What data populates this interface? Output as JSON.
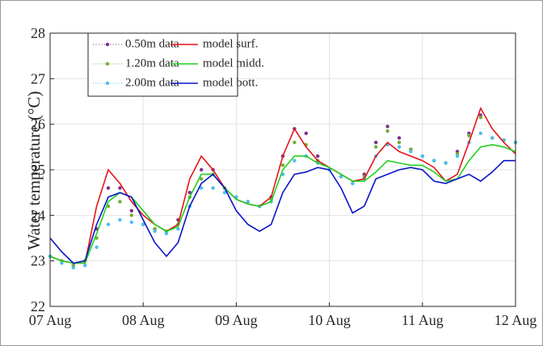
{
  "chart_data": {
    "type": "line",
    "ylabel": "Water temperature (°C)",
    "x": [
      0,
      0.125,
      0.25,
      0.375,
      0.5,
      0.625,
      0.75,
      0.875,
      1,
      1.125,
      1.25,
      1.375,
      1.5,
      1.625,
      1.75,
      1.875,
      2,
      2.125,
      2.25,
      2.375,
      2.5,
      2.625,
      2.75,
      2.875,
      3,
      3.125,
      3.25,
      3.375,
      3.5,
      3.625,
      3.75,
      3.875,
      4,
      4.125,
      4.25,
      4.375,
      4.5,
      4.625,
      4.75,
      4.875,
      5
    ],
    "xlim": [
      0,
      5
    ],
    "xticks": [
      {
        "value": 0,
        "label": "07 Aug"
      },
      {
        "value": 1,
        "label": "08 Aug"
      },
      {
        "value": 2,
        "label": "09 Aug"
      },
      {
        "value": 3,
        "label": "10 Aug"
      },
      {
        "value": 4,
        "label": "11 Aug"
      },
      {
        "value": 5,
        "label": "12 Aug"
      }
    ],
    "ylim": [
      22,
      28
    ],
    "yticks": [
      22,
      23,
      24,
      25,
      26,
      27,
      28
    ],
    "grid": true,
    "legend": "upper left",
    "series": [
      {
        "name": "0.50m data",
        "color": "#7e2f8e",
        "marker": "dot",
        "values": [
          23.1,
          23.0,
          22.9,
          23.0,
          23.7,
          24.6,
          24.6,
          24.1,
          23.8,
          23.7,
          23.65,
          23.9,
          24.5,
          25.0,
          25.0,
          24.6,
          24.4,
          24.3,
          24.2,
          24.4,
          25.3,
          25.9,
          25.8,
          25.3,
          25.0,
          24.85,
          24.7,
          24.9,
          25.6,
          25.95,
          25.7,
          25.45,
          25.3,
          25.2,
          25.15,
          25.4,
          25.8,
          26.2,
          25.7,
          25.65,
          25.6
        ]
      },
      {
        "name": "model surf.",
        "color": "#e3151a",
        "marker": "line",
        "values": [
          23.1,
          23.0,
          22.95,
          22.95,
          24.2,
          25.0,
          24.7,
          24.3,
          24.0,
          23.8,
          23.65,
          23.8,
          24.8,
          25.3,
          25.0,
          24.6,
          24.35,
          24.25,
          24.2,
          24.4,
          25.3,
          25.9,
          25.5,
          25.2,
          25.05,
          24.9,
          24.75,
          24.8,
          25.3,
          25.6,
          25.4,
          25.3,
          25.2,
          25.05,
          24.75,
          24.9,
          25.6,
          26.35,
          25.9,
          25.6,
          25.35
        ]
      },
      {
        "name": "1.20m data",
        "color": "#77ac30",
        "marker": "dot",
        "values": [
          23.1,
          23.0,
          22.9,
          23.0,
          23.5,
          24.2,
          24.3,
          24.0,
          23.8,
          23.7,
          23.65,
          23.8,
          24.4,
          24.8,
          24.9,
          24.6,
          24.4,
          24.3,
          24.2,
          24.35,
          25.1,
          25.6,
          25.55,
          25.2,
          25.0,
          24.85,
          24.7,
          24.85,
          25.5,
          25.85,
          25.6,
          25.45,
          25.3,
          25.2,
          25.15,
          25.35,
          25.75,
          26.15,
          25.7,
          25.65,
          25.6
        ]
      },
      {
        "name": "model midd.",
        "color": "#1fd11f",
        "marker": "line",
        "values": [
          23.1,
          23.0,
          22.95,
          22.95,
          23.6,
          24.3,
          24.5,
          24.4,
          24.1,
          23.8,
          23.65,
          23.75,
          24.4,
          24.9,
          24.9,
          24.6,
          24.35,
          24.25,
          24.2,
          24.3,
          25.0,
          25.3,
          25.3,
          25.15,
          25.05,
          24.9,
          24.75,
          24.75,
          24.95,
          25.2,
          25.15,
          25.1,
          25.1,
          24.95,
          24.75,
          24.8,
          25.2,
          25.5,
          25.55,
          25.5,
          25.4
        ]
      },
      {
        "name": "2.00m data",
        "color": "#4dbeee",
        "marker": "dot",
        "values": [
          23.1,
          22.95,
          22.85,
          22.9,
          23.3,
          23.8,
          23.9,
          23.85,
          23.8,
          23.65,
          23.6,
          23.7,
          24.2,
          24.6,
          24.6,
          24.5,
          24.4,
          24.3,
          24.2,
          24.3,
          24.9,
          25.2,
          25.3,
          25.15,
          25.0,
          24.85,
          24.7,
          24.8,
          25.3,
          25.55,
          25.5,
          25.4,
          25.3,
          25.2,
          25.15,
          25.3,
          25.6,
          25.8,
          25.7,
          25.65,
          25.6
        ]
      },
      {
        "name": "model bott.",
        "color": "#0a14c8",
        "marker": "line",
        "values": [
          23.5,
          23.2,
          22.95,
          23.0,
          23.8,
          24.4,
          24.5,
          24.4,
          23.9,
          23.4,
          23.1,
          23.4,
          24.2,
          24.7,
          24.9,
          24.6,
          24.1,
          23.8,
          23.65,
          23.8,
          24.5,
          24.9,
          24.95,
          25.05,
          25.0,
          24.6,
          24.05,
          24.2,
          24.8,
          24.9,
          25.0,
          25.05,
          25.0,
          24.75,
          24.7,
          24.8,
          24.9,
          24.75,
          24.95,
          25.2,
          25.2
        ]
      }
    ]
  }
}
